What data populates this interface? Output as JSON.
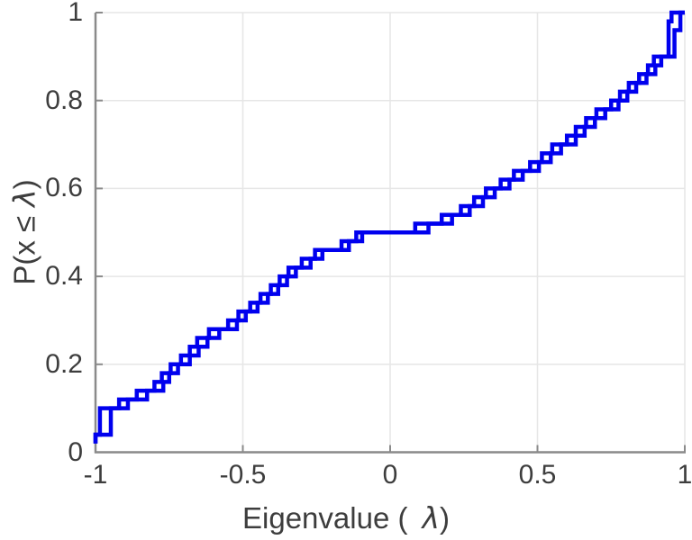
{
  "figure": {
    "xlabel": {
      "prefix": "Eigenvalue (",
      "lambda": "λ",
      "suffix": ")"
    },
    "ylabel": {
      "prefix": "P(x ≤",
      "lambda": "λ",
      "suffix": ")"
    }
  },
  "chart_data": {
    "type": "step",
    "subtype": "empirical-cdf-staircase",
    "description": "Two overlapping empirical CDF staircase curves of eigenvalues (N=50 each, step 0.02), drawn in the same blue color and nearly coincident, forming small box outlines where their jumps occur at slightly different eigenvalues.",
    "title": "",
    "xlabel": "Eigenvalue ( λ)",
    "ylabel": "P(x ≤ λ)",
    "xlim": [
      -1,
      1
    ],
    "ylim": [
      0,
      1
    ],
    "grid": true,
    "legend": "none",
    "x_ticks": [
      {
        "value": -1,
        "label": "-1"
      },
      {
        "value": -0.5,
        "label": "-0.5"
      },
      {
        "value": 0,
        "label": "0"
      },
      {
        "value": 0.5,
        "label": "0.5"
      },
      {
        "value": 1,
        "label": "1"
      }
    ],
    "y_ticks": [
      {
        "value": 0,
        "label": "0"
      },
      {
        "value": 0.2,
        "label": "0.2"
      },
      {
        "value": 0.4,
        "label": "0.4"
      },
      {
        "value": 0.6,
        "label": "0.6"
      },
      {
        "value": 0.8,
        "label": "0.8"
      },
      {
        "value": 1,
        "label": "1"
      }
    ],
    "line_color": "#0000ee",
    "line_width": 4.5,
    "axis_color": "#8a8a8a",
    "grid_color": "#e6e6e6",
    "text_color": "#3d3d3d",
    "levels_p": [
      0.02,
      0.04,
      0.06,
      0.08,
      0.1,
      0.12,
      0.14,
      0.16,
      0.18,
      0.2,
      0.22,
      0.24,
      0.26,
      0.28,
      0.3,
      0.32,
      0.34,
      0.36,
      0.38,
      0.4,
      0.42,
      0.44,
      0.46,
      0.48,
      0.5,
      0.52,
      0.54,
      0.56,
      0.58,
      0.6,
      0.62,
      0.64,
      0.66,
      0.68,
      0.7,
      0.72,
      0.74,
      0.76,
      0.78,
      0.8,
      0.82,
      0.84,
      0.86,
      0.88,
      0.9,
      0.92,
      0.94,
      0.96,
      0.98,
      1.0
    ],
    "series": [
      {
        "name": "ecdf-curve-1",
        "x": [
          -1.0,
          -1.0,
          -0.985,
          -0.985,
          -0.985,
          -0.92,
          -0.86,
          -0.8,
          -0.775,
          -0.745,
          -0.71,
          -0.68,
          -0.655,
          -0.615,
          -0.55,
          -0.515,
          -0.475,
          -0.44,
          -0.405,
          -0.375,
          -0.345,
          -0.3,
          -0.255,
          -0.165,
          -0.115,
          0.085,
          0.175,
          0.24,
          0.285,
          0.325,
          0.375,
          0.42,
          0.475,
          0.515,
          0.55,
          0.6,
          0.63,
          0.665,
          0.7,
          0.75,
          0.78,
          0.81,
          0.845,
          0.875,
          0.895,
          0.945,
          0.945,
          0.945,
          0.945,
          0.955
        ]
      },
      {
        "name": "ecdf-curve-2",
        "x": [
          -1.0,
          -1.0,
          -0.948,
          -0.948,
          -0.948,
          -0.89,
          -0.825,
          -0.77,
          -0.75,
          -0.72,
          -0.68,
          -0.65,
          -0.62,
          -0.58,
          -0.52,
          -0.49,
          -0.45,
          -0.415,
          -0.38,
          -0.35,
          -0.32,
          -0.27,
          -0.23,
          -0.14,
          -0.095,
          0.13,
          0.21,
          0.27,
          0.315,
          0.355,
          0.405,
          0.45,
          0.505,
          0.545,
          0.58,
          0.63,
          0.66,
          0.695,
          0.73,
          0.775,
          0.805,
          0.835,
          0.87,
          0.9,
          0.92,
          0.965,
          0.965,
          0.965,
          0.985,
          0.985
        ]
      }
    ]
  }
}
